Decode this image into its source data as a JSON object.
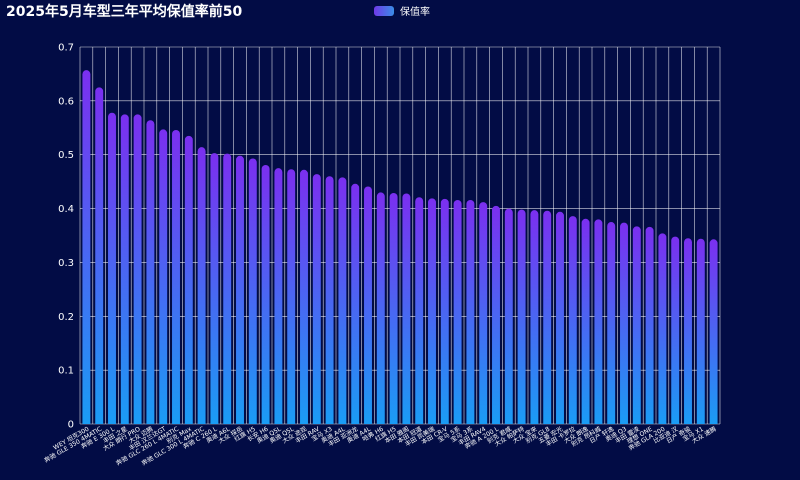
{
  "chart_data": {
    "type": "bar",
    "title": "2025年5月车型三年平均保值率前50",
    "legend": "保值率",
    "ylim": [
      0,
      0.7
    ],
    "yticks": [
      "0",
      "0.1",
      "0.2",
      "0.3",
      "0.4",
      "0.5",
      "0.6",
      "0.7"
    ],
    "grid": true,
    "colors": {
      "top": "#7b2ff0",
      "bottom": "#1a9cf5"
    },
    "categories": [
      "WEY 坦克300",
      "奔驰 GLE 350 4MATIC",
      "奔驰 E 300 L",
      "丰田 之星",
      "大众 朗行 PRO",
      "大众 迈腾",
      "丰田 汉兰达GT",
      "奔驰 GLC 260 L 4MATIC",
      "别克 Max",
      "奔驰 GLC 300 L 4MATIC",
      "奔驰 C 260 L",
      "奥迪 A6L",
      "大众 探岳",
      "红旗 H5",
      "长安 H6",
      "奥迪 Q5L",
      "奥迪 Q5L",
      "大众 途观",
      "丰田 RAV",
      "宝马 X3",
      "奥迪 A4L",
      "丰田 亚洲龙",
      "奥迪 A4L",
      "哈弗 H6",
      "红旗 H5",
      "本田 雅阁",
      "本田 冠道",
      "丰田 凯美瑞",
      "本田 CR-V",
      "宝马 5系",
      "宝马 3系",
      "丰田 RAV4",
      "奔驰 A 200 L",
      "别克 君威",
      "大众 帕萨特",
      "大众 宝来",
      "别克 GL8",
      "五菱 宏光",
      "丰田 卡罗拉",
      "大众 朗逸",
      "别克 昂科威",
      "日产 轩逸",
      "奥迪 Q3",
      "丰田 雷凌",
      "理想 ONE",
      "奔驰 GLA 200",
      "比亚迪 汉",
      "日产 奇骏",
      "宝马 X1",
      "大众 速腾"
    ],
    "values": [
      0.657,
      0.625,
      0.578,
      0.575,
      0.575,
      0.564,
      0.547,
      0.546,
      0.535,
      0.514,
      0.503,
      0.502,
      0.498,
      0.493,
      0.481,
      0.475,
      0.473,
      0.472,
      0.464,
      0.46,
      0.458,
      0.446,
      0.441,
      0.43,
      0.429,
      0.428,
      0.421,
      0.419,
      0.418,
      0.416,
      0.416,
      0.412,
      0.405,
      0.4,
      0.398,
      0.397,
      0.396,
      0.394,
      0.386,
      0.381,
      0.38,
      0.375,
      0.374,
      0.367,
      0.366,
      0.354,
      0.348,
      0.345,
      0.344,
      0.343
    ]
  }
}
